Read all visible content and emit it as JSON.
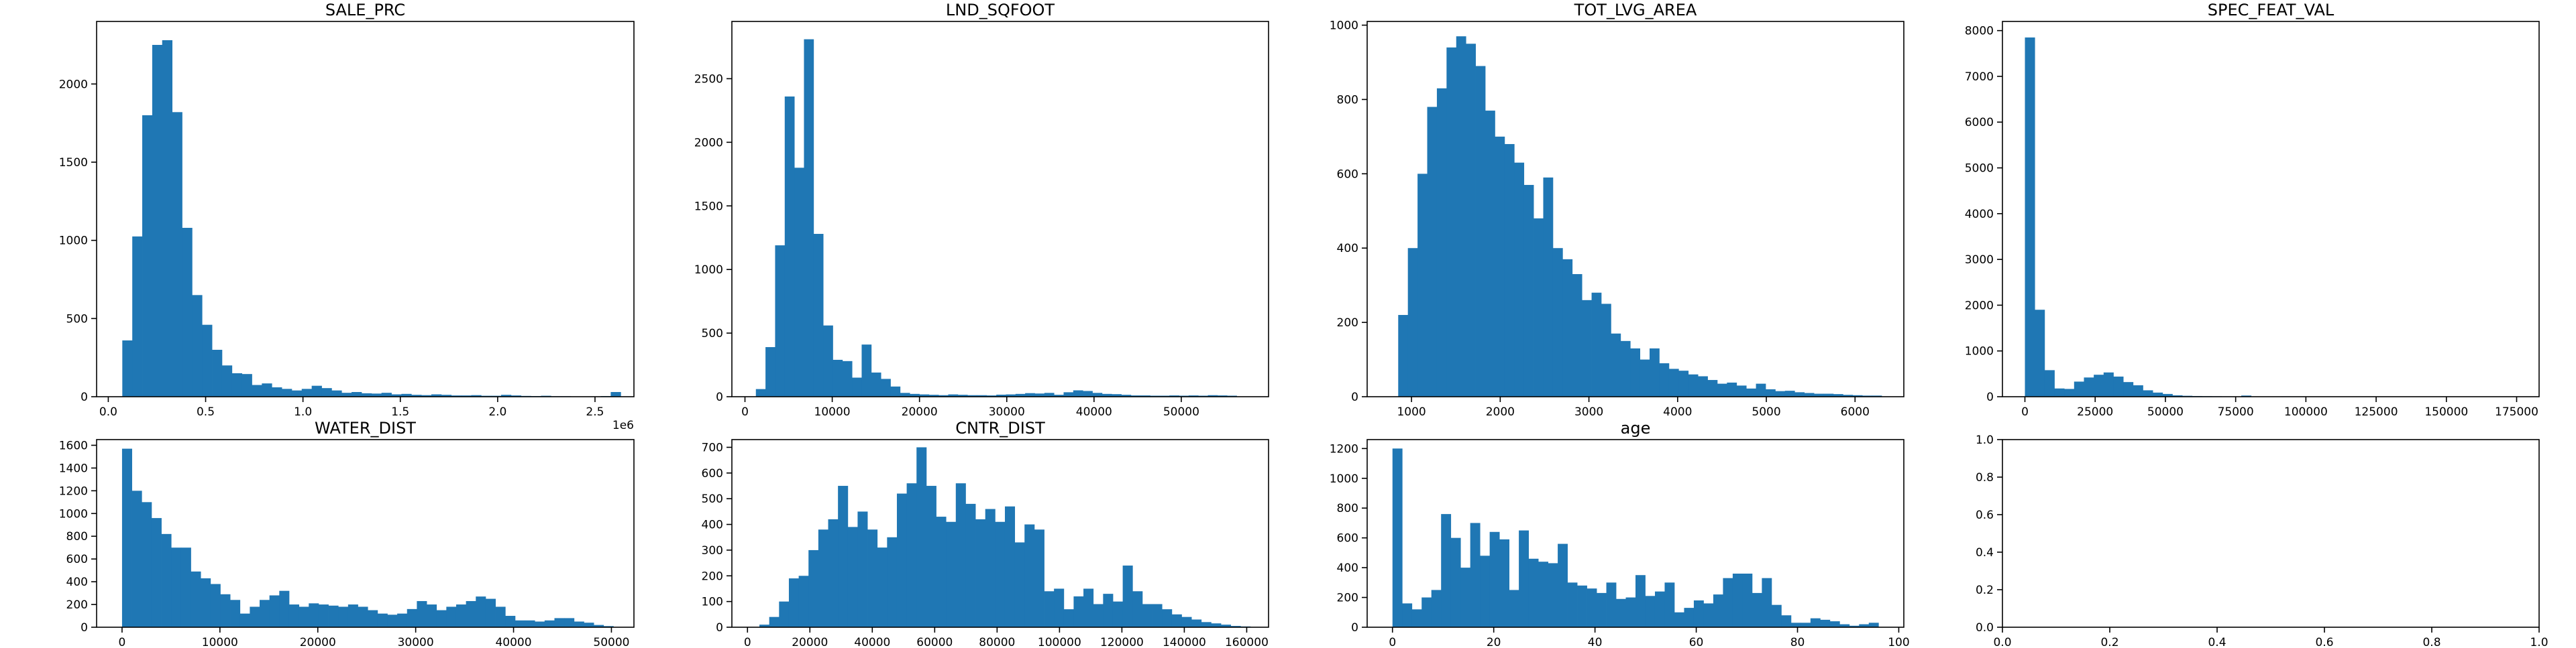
{
  "colors": {
    "bar": "#1f77b4",
    "axis": "#000000",
    "background": "#ffffff"
  },
  "chart_data": [
    {
      "type": "bar",
      "title": "SALE_PRC",
      "xlim": [
        -0.06,
        2.7
      ],
      "ylim": [
        0,
        2400
      ],
      "xticks": [
        0.0,
        0.5,
        1.0,
        1.5,
        2.0,
        2.5
      ],
      "xtick_labels": [
        "0.0",
        "0.5",
        "1.0",
        "1.5",
        "2.0",
        "2.5"
      ],
      "yticks": [
        0,
        500,
        1000,
        1500,
        2000
      ],
      "ytick_labels": [
        "0",
        "500",
        "1000",
        "1500",
        "2000"
      ],
      "x_offset_label": "1e6",
      "bin_start": 0.072,
      "bin_width": 0.0512,
      "values": [
        360,
        1025,
        1800,
        2250,
        2280,
        1820,
        1080,
        650,
        460,
        300,
        200,
        150,
        145,
        75,
        85,
        60,
        50,
        40,
        50,
        70,
        55,
        40,
        25,
        30,
        22,
        20,
        25,
        15,
        18,
        12,
        10,
        15,
        12,
        8,
        8,
        10,
        6,
        6,
        12,
        8,
        5,
        4,
        6,
        3,
        3,
        2,
        2,
        2,
        4,
        30
      ]
    },
    {
      "type": "bar",
      "title": "LND_SQFOOT",
      "xlim": [
        -1500,
        60000
      ],
      "ylim": [
        0,
        2950
      ],
      "xticks": [
        0,
        10000,
        20000,
        30000,
        40000,
        50000
      ],
      "xtick_labels": [
        "0",
        "10000",
        "20000",
        "30000",
        "40000",
        "50000"
      ],
      "yticks": [
        0,
        500,
        1000,
        1500,
        2000,
        2500
      ],
      "ytick_labels": [
        "0",
        "500",
        "1000",
        "1500",
        "2000",
        "2500"
      ],
      "bin_start": 1250,
      "bin_width": 1102,
      "values": [
        60,
        390,
        1190,
        2360,
        1800,
        2810,
        1280,
        560,
        290,
        280,
        150,
        410,
        190,
        140,
        80,
        30,
        22,
        18,
        15,
        12,
        18,
        15,
        12,
        12,
        10,
        16,
        18,
        22,
        28,
        25,
        30,
        15,
        35,
        50,
        45,
        30,
        22,
        20,
        15,
        10,
        10,
        8,
        8,
        10,
        8,
        10,
        8,
        12,
        10,
        8
      ]
    },
    {
      "type": "bar",
      "title": "TOT_LVG_AREA",
      "xlim": [
        500,
        6550
      ],
      "ylim": [
        0,
        1010
      ],
      "xticks": [
        1000,
        2000,
        3000,
        4000,
        5000,
        6000
      ],
      "xtick_labels": [
        "1000",
        "2000",
        "3000",
        "4000",
        "5000",
        "6000"
      ],
      "yticks": [
        0,
        200,
        400,
        600,
        800,
        1000
      ],
      "ytick_labels": [
        "0",
        "200",
        "400",
        "600",
        "800",
        "1000"
      ],
      "bin_start": 850,
      "bin_width": 109,
      "values": [
        220,
        400,
        600,
        780,
        830,
        940,
        970,
        950,
        890,
        770,
        700,
        680,
        630,
        570,
        480,
        590,
        400,
        370,
        330,
        260,
        280,
        250,
        170,
        150,
        130,
        100,
        130,
        90,
        75,
        70,
        60,
        55,
        45,
        35,
        38,
        30,
        22,
        35,
        20,
        15,
        16,
        12,
        10,
        8,
        8,
        7,
        5,
        4,
        3,
        3
      ]
    },
    {
      "type": "bar",
      "title": "SPEC_FEAT_VAL",
      "xlim": [
        -8000,
        183000
      ],
      "ylim": [
        0,
        8200
      ],
      "xticks": [
        0,
        25000,
        50000,
        75000,
        100000,
        125000,
        150000,
        175000
      ],
      "xtick_labels": [
        "0",
        "25000",
        "50000",
        "75000",
        "100000",
        "125000",
        "150000",
        "175000"
      ],
      "yticks": [
        0,
        1000,
        2000,
        3000,
        4000,
        5000,
        6000,
        7000,
        8000
      ],
      "ytick_labels": [
        "0",
        "1000",
        "2000",
        "3000",
        "4000",
        "5000",
        "6000",
        "7000",
        "8000"
      ],
      "bin_start": 0,
      "bin_width": 3500,
      "values": [
        7850,
        1900,
        580,
        180,
        170,
        330,
        420,
        480,
        530,
        440,
        320,
        250,
        140,
        90,
        60,
        30,
        20,
        15,
        12,
        10,
        8,
        6,
        25,
        5,
        4,
        3,
        8,
        3,
        2,
        2,
        2,
        3,
        2,
        1,
        1,
        2,
        1,
        1,
        1,
        2,
        1,
        1,
        1,
        1,
        1,
        1,
        1,
        1,
        1,
        5
      ]
    },
    {
      "type": "bar",
      "title": "WATER_DIST",
      "xlim": [
        -2600,
        52300
      ],
      "ylim": [
        0,
        1650
      ],
      "xticks": [
        0,
        10000,
        20000,
        30000,
        40000,
        50000
      ],
      "xtick_labels": [
        "0",
        "10000",
        "20000",
        "30000",
        "40000",
        "50000"
      ],
      "yticks": [
        0,
        200,
        400,
        600,
        800,
        1000,
        1200,
        1400,
        1600
      ],
      "ytick_labels": [
        "0",
        "200",
        "400",
        "600",
        "800",
        "1000",
        "1200",
        "1400",
        "1600"
      ],
      "bin_start": 0,
      "bin_width": 1004,
      "values": [
        1570,
        1200,
        1100,
        960,
        820,
        700,
        700,
        490,
        430,
        380,
        290,
        240,
        120,
        180,
        240,
        280,
        320,
        200,
        180,
        210,
        200,
        190,
        180,
        200,
        180,
        150,
        120,
        110,
        120,
        160,
        230,
        200,
        150,
        180,
        200,
        230,
        270,
        250,
        180,
        100,
        60,
        60,
        50,
        60,
        80,
        80,
        50,
        40,
        20,
        10
      ]
    },
    {
      "type": "bar",
      "title": "CNTR_DIST",
      "xlim": [
        -5000,
        167000
      ],
      "ylim": [
        0,
        730
      ],
      "xticks": [
        0,
        20000,
        40000,
        60000,
        80000,
        100000,
        120000,
        140000,
        160000
      ],
      "xtick_labels": [
        "0",
        "20000",
        "40000",
        "60000",
        "80000",
        "100000",
        "120000",
        "140000",
        "160000"
      ],
      "yticks": [
        0,
        100,
        200,
        300,
        400,
        500,
        600,
        700
      ],
      "ytick_labels": [
        "0",
        "100",
        "200",
        "300",
        "400",
        "500",
        "600",
        "700"
      ],
      "bin_start": 3825,
      "bin_width": 3147,
      "values": [
        10,
        40,
        100,
        190,
        200,
        300,
        380,
        420,
        550,
        390,
        450,
        380,
        310,
        350,
        520,
        560,
        700,
        550,
        430,
        410,
        560,
        480,
        420,
        460,
        410,
        470,
        330,
        400,
        380,
        140,
        150,
        70,
        120,
        150,
        90,
        130,
        100,
        240,
        140,
        90,
        90,
        70,
        50,
        40,
        30,
        20,
        15,
        10,
        5,
        3
      ]
    },
    {
      "type": "bar",
      "title": "age",
      "xlim": [
        -5,
        101
      ],
      "ylim": [
        0,
        1260
      ],
      "xticks": [
        0,
        20,
        40,
        60,
        80,
        100
      ],
      "xtick_labels": [
        "0",
        "20",
        "40",
        "60",
        "80",
        "100"
      ],
      "yticks": [
        0,
        200,
        400,
        600,
        800,
        1000,
        1200
      ],
      "ytick_labels": [
        "0",
        "200",
        "400",
        "600",
        "800",
        "1000",
        "1200"
      ],
      "bin_start": 0,
      "bin_width": 1.92,
      "values": [
        1200,
        160,
        120,
        200,
        250,
        760,
        600,
        400,
        700,
        480,
        640,
        590,
        250,
        650,
        460,
        440,
        430,
        560,
        300,
        280,
        260,
        230,
        300,
        190,
        200,
        350,
        210,
        240,
        300,
        100,
        130,
        180,
        160,
        220,
        330,
        360,
        360,
        230,
        330,
        150,
        80,
        30,
        30,
        60,
        50,
        40,
        20,
        10,
        20,
        30
      ]
    },
    {
      "type": "bar",
      "title": "",
      "xlim": [
        0,
        1
      ],
      "ylim": [
        0,
        1
      ],
      "xticks": [
        0.0,
        0.2,
        0.4,
        0.6,
        0.8,
        1.0
      ],
      "xtick_labels": [
        "0.0",
        "0.2",
        "0.4",
        "0.6",
        "0.8",
        "1.0"
      ],
      "yticks": [
        0.0,
        0.2,
        0.4,
        0.6,
        0.8,
        1.0
      ],
      "ytick_labels": [
        "0.0",
        "0.2",
        "0.4",
        "0.6",
        "0.8",
        "1.0"
      ],
      "values": []
    }
  ]
}
